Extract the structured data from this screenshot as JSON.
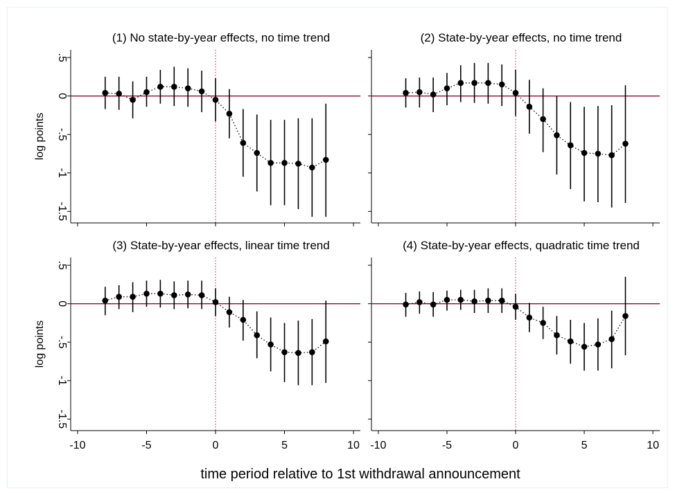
{
  "figure": {
    "xlabel": "time period relative to 1st withdrawal announcement",
    "ylabel": "log points"
  },
  "colors": {
    "marker": "#000000",
    "zero_line": "#8b0a2e",
    "event_line": "#c0122f",
    "frame": "#000000",
    "outer_border": "#e6eeee"
  },
  "chart_data": [
    {
      "type": "scatter",
      "title": "(1) No state-by-year effects, no time trend",
      "ylabel": "log points",
      "xlim": [
        -10.5,
        10.5
      ],
      "ylim": [
        -1.65,
        0.6
      ],
      "xticks": [
        -10,
        -5,
        0,
        5,
        10
      ],
      "yticks": [
        0.5,
        0,
        -0.5,
        -1,
        -1.5
      ],
      "ytick_labels": [
        ".5",
        "0",
        "-.5",
        "-1",
        "-1.5"
      ],
      "x": [
        -8,
        -7,
        -6,
        -5,
        -4,
        -3,
        -2,
        -1,
        0,
        1,
        2,
        3,
        4,
        5,
        6,
        7,
        8
      ],
      "y": [
        0.04,
        0.03,
        -0.05,
        0.05,
        0.12,
        0.12,
        0.1,
        0.06,
        -0.05,
        -0.23,
        -0.61,
        -0.74,
        -0.87,
        -0.87,
        -0.88,
        -0.93,
        -0.83
      ],
      "ci_low": [
        -0.17,
        -0.18,
        -0.29,
        -0.14,
        -0.1,
        -0.13,
        -0.14,
        -0.21,
        -0.33,
        -0.55,
        -1.05,
        -1.24,
        -1.42,
        -1.42,
        -1.47,
        -1.57,
        -1.57
      ],
      "ci_high": [
        0.25,
        0.25,
        0.19,
        0.25,
        0.34,
        0.38,
        0.36,
        0.33,
        0.23,
        0.09,
        -0.17,
        -0.24,
        -0.31,
        -0.31,
        -0.29,
        -0.29,
        -0.1
      ],
      "zero_line": 0,
      "event_line_x": 0
    },
    {
      "type": "scatter",
      "title": "(2) State-by-year effects, no time trend",
      "ylabel": "",
      "xlim": [
        -10.5,
        10.5
      ],
      "ylim": [
        -1.65,
        0.6
      ],
      "xticks": [
        -10,
        -5,
        0,
        5,
        10
      ],
      "yticks": [
        0.5,
        0,
        -0.5,
        -1,
        -1.5
      ],
      "ytick_labels": [],
      "x": [
        -8,
        -7,
        -6,
        -5,
        -4,
        -3,
        -2,
        -1,
        0,
        1,
        2,
        3,
        4,
        5,
        6,
        7,
        8
      ],
      "y": [
        0.04,
        0.05,
        0.02,
        0.1,
        0.17,
        0.17,
        0.17,
        0.15,
        0.04,
        -0.14,
        -0.3,
        -0.51,
        -0.64,
        -0.74,
        -0.75,
        -0.77,
        -0.62
      ],
      "ci_low": [
        -0.15,
        -0.15,
        -0.21,
        -0.12,
        -0.08,
        -0.09,
        -0.1,
        -0.13,
        -0.26,
        -0.49,
        -0.73,
        -1.02,
        -1.21,
        -1.37,
        -1.38,
        -1.45,
        -1.39
      ],
      "ci_high": [
        0.23,
        0.24,
        0.24,
        0.3,
        0.4,
        0.43,
        0.43,
        0.41,
        0.34,
        0.21,
        0.1,
        0.0,
        -0.08,
        -0.14,
        -0.13,
        -0.12,
        0.14
      ],
      "zero_line": 0,
      "event_line_x": 0
    },
    {
      "type": "scatter",
      "title": "(3) State-by-year effects, linear time trend",
      "ylabel": "log points",
      "xlim": [
        -10.5,
        10.5
      ],
      "ylim": [
        -1.65,
        0.6
      ],
      "xticks": [
        -10,
        -5,
        0,
        5,
        10
      ],
      "xtick_labels": [
        "-10",
        "-5",
        "0",
        "5",
        "10"
      ],
      "yticks": [
        0.5,
        0,
        -0.5,
        -1,
        -1.5
      ],
      "ytick_labels": [
        ".5",
        "0",
        "-.5",
        "-1",
        "-1.5"
      ],
      "x": [
        -8,
        -7,
        -6,
        -5,
        -4,
        -3,
        -2,
        -1,
        0,
        1,
        2,
        3,
        4,
        5,
        6,
        7,
        8
      ],
      "y": [
        0.04,
        0.09,
        0.09,
        0.13,
        0.13,
        0.11,
        0.12,
        0.11,
        0.02,
        -0.11,
        -0.21,
        -0.41,
        -0.53,
        -0.63,
        -0.64,
        -0.63,
        -0.49
      ],
      "ci_low": [
        -0.15,
        -0.07,
        -0.11,
        -0.04,
        -0.05,
        -0.07,
        -0.06,
        -0.07,
        -0.16,
        -0.31,
        -0.48,
        -0.71,
        -0.88,
        -1.02,
        -1.06,
        -1.06,
        -1.03
      ],
      "ci_high": [
        0.22,
        0.24,
        0.28,
        0.3,
        0.31,
        0.29,
        0.3,
        0.3,
        0.2,
        0.09,
        0.05,
        -0.1,
        -0.18,
        -0.25,
        -0.22,
        -0.2,
        0.04
      ],
      "zero_line": 0,
      "event_line_x": 0
    },
    {
      "type": "scatter",
      "title": "(4) State-by-year effects, quadratic time trend",
      "ylabel": "",
      "xlim": [
        -10.5,
        10.5
      ],
      "ylim": [
        -1.65,
        0.6
      ],
      "xticks": [
        -10,
        -5,
        0,
        5,
        10
      ],
      "xtick_labels": [
        "-10",
        "-5",
        "0",
        "5",
        "10"
      ],
      "yticks": [
        0.5,
        0,
        -0.5,
        -1,
        -1.5
      ],
      "ytick_labels": [],
      "x": [
        -8,
        -7,
        -6,
        -5,
        -4,
        -3,
        -2,
        -1,
        0,
        1,
        2,
        3,
        4,
        5,
        6,
        7,
        8
      ],
      "y": [
        -0.01,
        0.02,
        -0.01,
        0.05,
        0.05,
        0.03,
        0.04,
        0.04,
        -0.04,
        -0.18,
        -0.25,
        -0.41,
        -0.49,
        -0.56,
        -0.53,
        -0.46,
        -0.16
      ],
      "ci_low": [
        -0.17,
        -0.13,
        -0.17,
        -0.09,
        -0.08,
        -0.12,
        -0.12,
        -0.12,
        -0.21,
        -0.37,
        -0.46,
        -0.66,
        -0.78,
        -0.87,
        -0.87,
        -0.84,
        -0.67
      ],
      "ci_high": [
        0.14,
        0.16,
        0.15,
        0.17,
        0.18,
        0.18,
        0.2,
        0.2,
        0.13,
        0.01,
        -0.04,
        -0.16,
        -0.21,
        -0.25,
        -0.19,
        -0.09,
        0.35
      ],
      "zero_line": 0,
      "event_line_x": 0
    }
  ]
}
